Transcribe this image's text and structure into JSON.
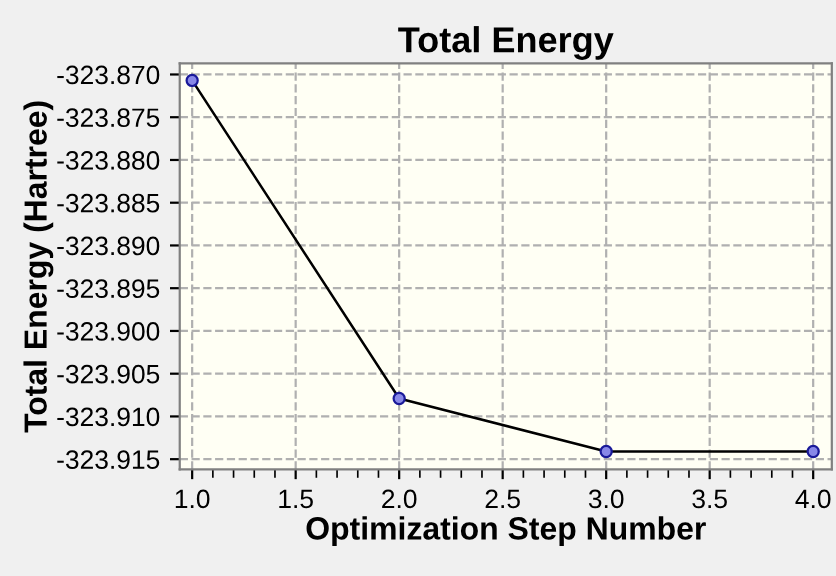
{
  "chart_data": {
    "type": "line",
    "title": "Total Energy",
    "xlabel": "Optimization Step Number",
    "ylabel": "Total Energy (Hartree)",
    "x": [
      1,
      2,
      3,
      4
    ],
    "series": [
      {
        "color": "#000000",
        "values": [
          -323.8707,
          -323.9079,
          -323.9141,
          -323.9141
        ]
      }
    ],
    "marker": "circle",
    "line_style": "solid",
    "grid": true,
    "xlim": [
      0.94,
      4.09
    ],
    "xticks": [
      {
        "value": 1,
        "label": "1.0"
      },
      {
        "value": 1.5,
        "label": "1.5"
      },
      {
        "value": 2,
        "label": "2.0"
      },
      {
        "value": 2.5,
        "label": "2.5"
      },
      {
        "value": 3,
        "label": "3.0"
      },
      {
        "value": 3.5,
        "label": "3.5"
      },
      {
        "value": 4,
        "label": "4.0"
      }
    ],
    "ylim": [
      -323.9162,
      -323.8687
    ],
    "yticks": [
      {
        "value": -323.87,
        "label": "-323.870"
      },
      {
        "value": -323.875,
        "label": "-323.875"
      },
      {
        "value": -323.88,
        "label": "-323.880"
      },
      {
        "value": -323.885,
        "label": "-323.885"
      },
      {
        "value": -323.89,
        "label": "-323.890"
      },
      {
        "value": -323.895,
        "label": "-323.895"
      },
      {
        "value": -323.9,
        "label": "-323.900"
      },
      {
        "value": -323.905,
        "label": "-323.905"
      },
      {
        "value": -323.91,
        "label": "-323.910"
      },
      {
        "value": -323.915,
        "label": "-323.915"
      }
    ]
  }
}
